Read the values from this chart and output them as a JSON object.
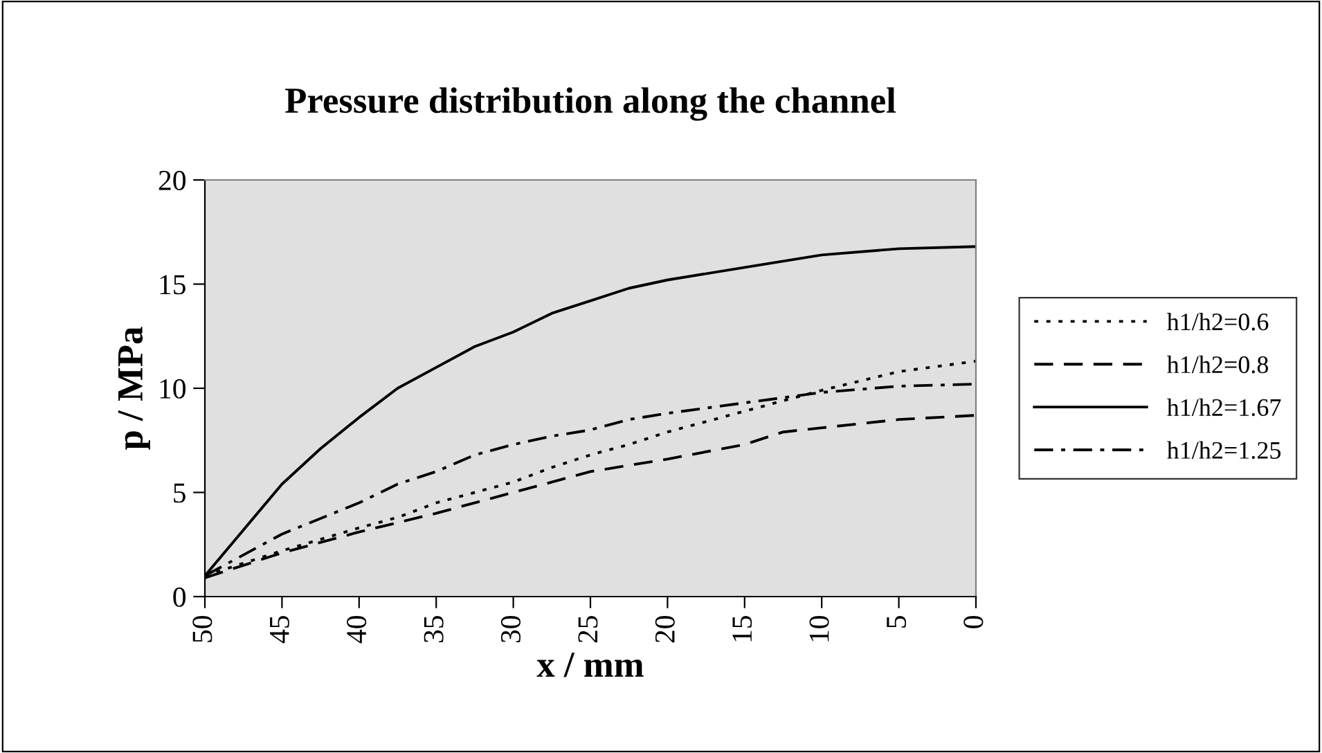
{
  "chart_data": {
    "type": "line",
    "title": "Pressure distribution along the channel",
    "xlabel": "x / mm",
    "ylabel": "p / MPa",
    "xlim": [
      50,
      0
    ],
    "xticks": [
      50,
      45,
      40,
      35,
      30,
      25,
      20,
      15,
      10,
      5,
      0
    ],
    "ylim": [
      0,
      20
    ],
    "yticks": [
      0,
      5,
      10,
      15,
      20
    ],
    "grid": false,
    "legend": "right",
    "marker": "none",
    "series": [
      {
        "name": "h1/h2=0.6",
        "color": "#000000",
        "line_style": "dotted",
        "x": [
          50,
          45,
          40,
          37.5,
          35,
          32.5,
          30,
          27.5,
          25,
          22.5,
          20,
          15,
          10,
          5,
          0
        ],
        "values": [
          1,
          2.2,
          3.3,
          3.8,
          4.5,
          5,
          5.5,
          6.2,
          6.8,
          7.3,
          7.9,
          8.9,
          9.9,
          10.8,
          11.3
        ]
      },
      {
        "name": "h1/h2=0.8",
        "color": "#000000",
        "line_style": "dashed",
        "x": [
          50,
          45,
          40,
          35,
          30,
          25,
          20,
          15,
          12.5,
          10,
          5,
          0
        ],
        "values": [
          0.9,
          2.1,
          3.1,
          4.0,
          5.0,
          6.0,
          6.6,
          7.3,
          7.9,
          8.1,
          8.5,
          8.7
        ]
      },
      {
        "name": "h1/h2=1.67",
        "color": "#000000",
        "line_style": "solid",
        "x": [
          50,
          47.5,
          45,
          42.5,
          40,
          37.5,
          35,
          32.5,
          30,
          27.5,
          25,
          22.5,
          20,
          15,
          10,
          5,
          0
        ],
        "values": [
          1,
          3.2,
          5.4,
          7.1,
          8.6,
          10,
          11,
          12,
          12.7,
          13.6,
          14.2,
          14.8,
          15.2,
          15.8,
          16.4,
          16.7,
          16.8
        ]
      },
      {
        "name": "h1/h2=1.25",
        "color": "#000000",
        "line_style": "dashdot",
        "x": [
          50,
          45,
          40,
          37.5,
          35,
          32.5,
          30,
          27.5,
          25,
          22.5,
          20,
          15,
          10,
          5,
          0
        ],
        "values": [
          1,
          3,
          4.5,
          5.4,
          6,
          6.8,
          7.3,
          7.7,
          8,
          8.5,
          8.8,
          9.3,
          9.8,
          10.1,
          10.2
        ]
      }
    ]
  }
}
